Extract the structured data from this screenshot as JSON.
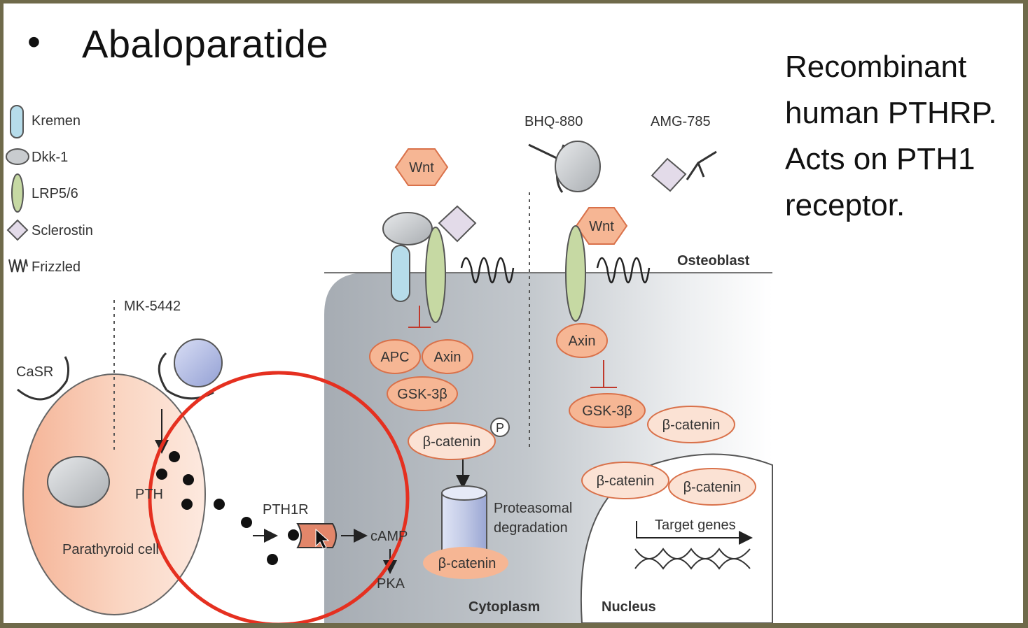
{
  "slide": {
    "bullet": "•",
    "title": "Abaloparatide",
    "side_note_lines": [
      "Recombinant",
      "human PTHRP.",
      "Acts on PTH1",
      "receptor."
    ]
  },
  "legend": {
    "kremen": "Kremen",
    "dkk1": "Dkk-1",
    "lrp": "LRP5/6",
    "sclerostin": "Sclerostin",
    "frizzled": "Frizzled"
  },
  "diagram": {
    "mk5442": "MK-5442",
    "casr": "CaSR",
    "pth": "PTH",
    "parathyroid_cell": "Parathyroid cell",
    "pth1r": "PTH1R",
    "camp": "cAMP",
    "pka": "PKA",
    "wnt_left": "Wnt",
    "wnt_right": "Wnt",
    "bhq880": "BHQ-880",
    "amg785": "AMG-785",
    "osteoblast": "Osteoblast",
    "apc": "APC",
    "axin_left": "Axin",
    "gsk_left": "GSK-3β",
    "bcat_p": "β-catenin",
    "p_label": "P",
    "proteasomal_1": "Proteasomal",
    "proteasomal_2": "degradation",
    "bcat_proteasome": "β-catenin",
    "cytoplasm": "Cytoplasm",
    "axin_right": "Axin",
    "gsk_right": "GSK-3β",
    "bcat_r1": "β-catenin",
    "bcat_r2": "β-catenin",
    "bcat_r3": "β-catenin",
    "target_genes": "Target genes",
    "nucleus": "Nucleus"
  },
  "colors": {
    "annotation_circle": "#e53020",
    "oval_fill": "#f6b694",
    "oval_stroke": "#d9714a",
    "cell_fill": "#f8ccb6",
    "cytoplasm_fill": "#a9afb6",
    "kremen_fill": "#b6dcea",
    "lrp_fill": "#c6d9a3",
    "dkk_fill": "#c9cccf",
    "sclerostin_fill": "#e3dbe9",
    "proteasome_fill": "#c3cbe4"
  }
}
